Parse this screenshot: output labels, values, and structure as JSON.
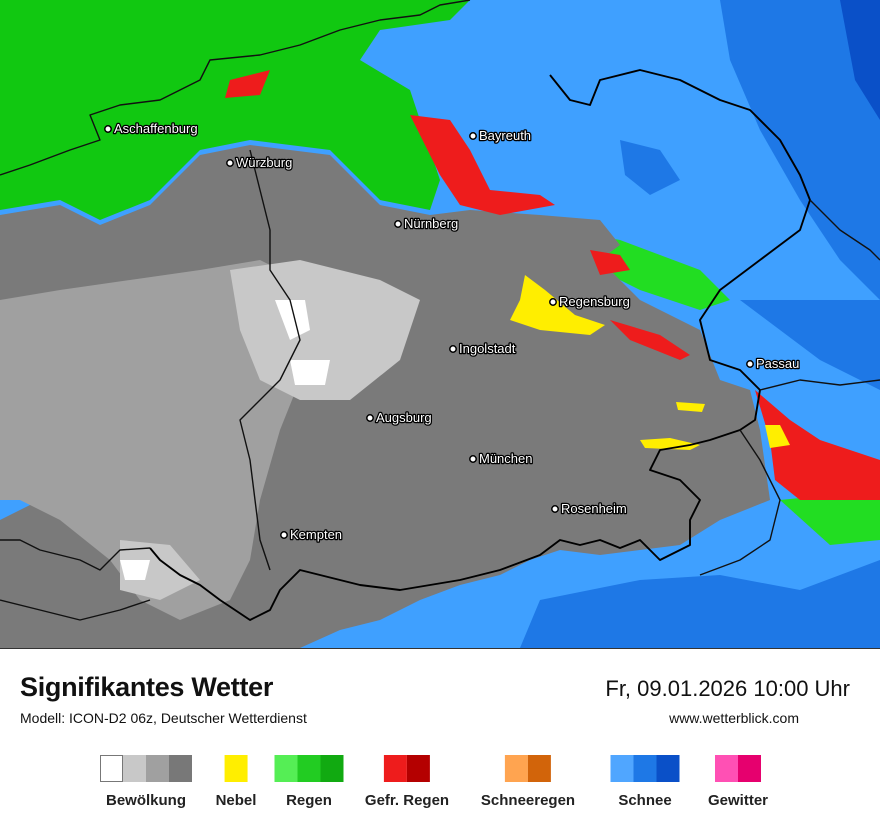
{
  "title": "Signifikantes Wetter",
  "subtitle": "Modell: ICON-D2 06z, Deutscher Wetterdienst",
  "datetime": "Fr, 09.01.2026 10:00 Uhr",
  "website": "www.wetterblick.com",
  "cities": [
    {
      "name": "Aschaffenburg"
    },
    {
      "name": "Würzburg"
    },
    {
      "name": "Bayreuth"
    },
    {
      "name": "Nürnberg"
    },
    {
      "name": "Regensburg"
    },
    {
      "name": "Ingolstadt"
    },
    {
      "name": "Passau"
    },
    {
      "name": "Augsburg"
    },
    {
      "name": "München"
    },
    {
      "name": "Rosenheim"
    },
    {
      "name": "Kempten"
    }
  ],
  "legend": [
    {
      "label": "Bewölkung",
      "colors": [
        "#ffffff",
        "#c8c8c8",
        "#a0a0a0",
        "#787878"
      ]
    },
    {
      "label": "Nebel",
      "colors": [
        "#ffee00"
      ]
    },
    {
      "label": "Regen",
      "colors": [
        "#55ee55",
        "#22cc22",
        "#11aa11"
      ]
    },
    {
      "label": "Gefr. Regen",
      "colors": [
        "#ee1c1c",
        "#b40000"
      ]
    },
    {
      "label": "Schneeregen",
      "colors": [
        "#ffa450",
        "#d2640a"
      ]
    },
    {
      "label": "Schnee",
      "colors": [
        "#50a6ff",
        "#1e78e6",
        "#0a50c8"
      ]
    },
    {
      "label": "Gewitter",
      "colors": [
        "#ff50b4",
        "#e6006e"
      ]
    }
  ]
}
